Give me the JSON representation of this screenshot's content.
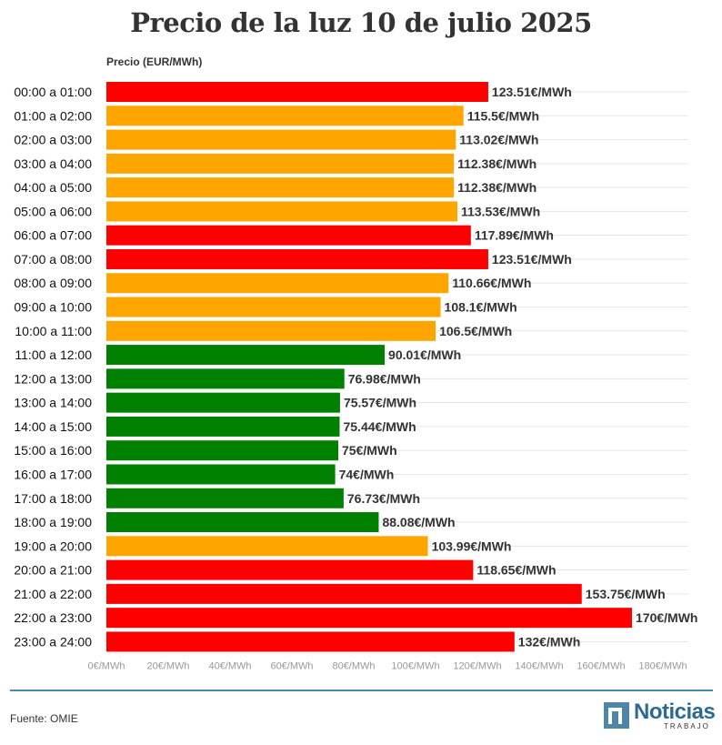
{
  "chart_data": {
    "type": "bar",
    "orientation": "horizontal",
    "title": "Precio de la luz 10 de julio 2025",
    "xlabel": "Precio (EUR/MWh)",
    "ylabel": "",
    "xlim": [
      0,
      180
    ],
    "x_ticks": [
      0,
      20,
      40,
      60,
      80,
      100,
      120,
      140,
      160,
      180
    ],
    "x_tick_labels": [
      "0€/MWh",
      "20€/MWh",
      "40€/MWh",
      "60€/MWh",
      "80€/MWh",
      "100€/MWh",
      "120€/MWh",
      "140€/MWh",
      "160€/MWh",
      "180€/MWh"
    ],
    "grid": true,
    "categories": [
      "00:00 a 01:00",
      "01:00 a 02:00",
      "02:00 a 03:00",
      "03:00 a 04:00",
      "04:00 a 05:00",
      "05:00 a 06:00",
      "06:00 a 07:00",
      "07:00 a 08:00",
      "08:00 a 09:00",
      "09:00 a 10:00",
      "10:00 a 11:00",
      "11:00 a 12:00",
      "12:00 a 13:00",
      "13:00 a 14:00",
      "14:00 a 15:00",
      "15:00 a 16:00",
      "16:00 a 17:00",
      "17:00 a 18:00",
      "18:00 a 19:00",
      "19:00 a 20:00",
      "20:00 a 21:00",
      "21:00 a 22:00",
      "22:00 a 23:00",
      "23:00 a 24:00"
    ],
    "values": [
      123.51,
      115.5,
      113.02,
      112.38,
      112.38,
      113.53,
      117.89,
      123.51,
      110.66,
      108.1,
      106.5,
      90.01,
      76.98,
      75.57,
      75.44,
      75,
      74,
      76.73,
      88.08,
      103.99,
      118.65,
      153.75,
      170,
      132
    ],
    "value_labels": [
      "123.51€/MWh",
      "115.5€/MWh",
      "113.02€/MWh",
      "112.38€/MWh",
      "112.38€/MWh",
      "113.53€/MWh",
      "117.89€/MWh",
      "123.51€/MWh",
      "110.66€/MWh",
      "108.1€/MWh",
      "106.5€/MWh",
      "90.01€/MWh",
      "76.98€/MWh",
      "75.57€/MWh",
      "75.44€/MWh",
      "75€/MWh",
      "74€/MWh",
      "76.73€/MWh",
      "88.08€/MWh",
      "103.99€/MWh",
      "118.65€/MWh",
      "153.75€/MWh",
      "170€/MWh",
      "132€/MWh"
    ],
    "levels": [
      "high",
      "mid",
      "mid",
      "mid",
      "mid",
      "mid",
      "high",
      "high",
      "mid",
      "mid",
      "mid",
      "low",
      "low",
      "low",
      "low",
      "low",
      "low",
      "low",
      "low",
      "mid",
      "high",
      "high",
      "high",
      "high"
    ],
    "level_colors": {
      "high": "#ff0000",
      "mid": "#ffa500",
      "low": "#008000"
    }
  },
  "footer": {
    "source": "Fuente: OMIE",
    "logo_word": "Noticias",
    "logo_sub": "TRABAJO"
  }
}
